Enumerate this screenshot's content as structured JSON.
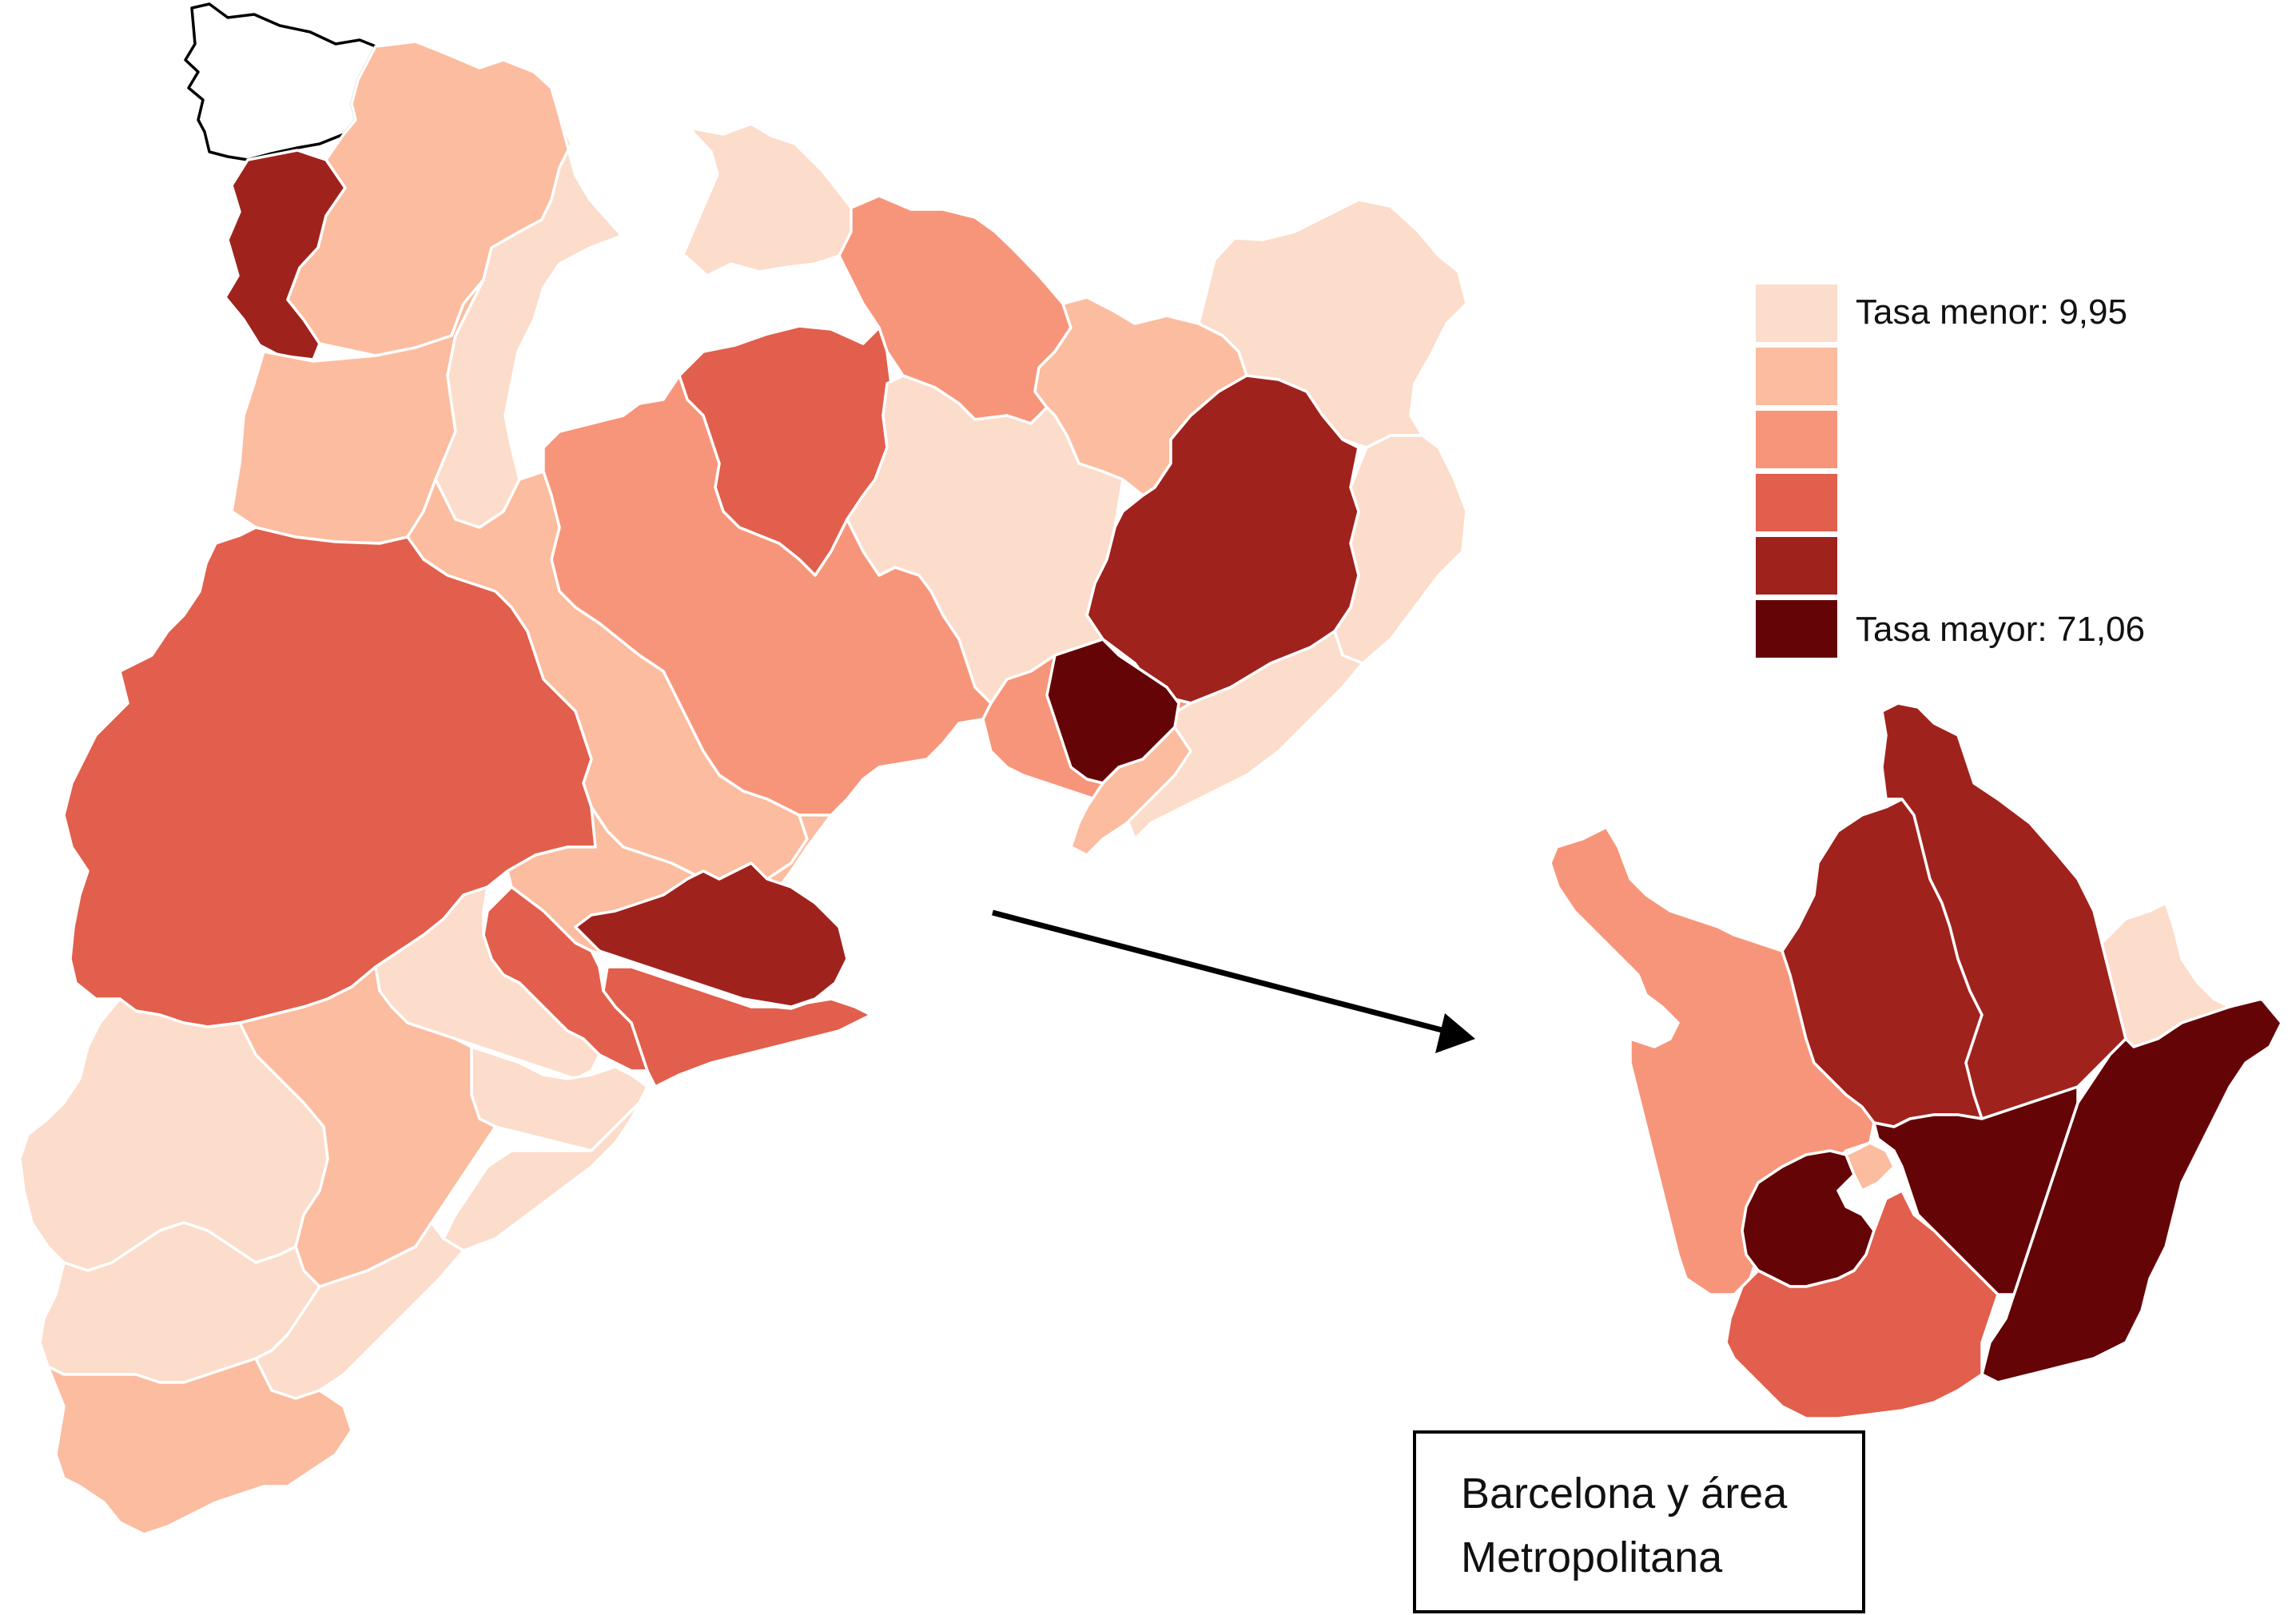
{
  "palette": {
    "c1": "#fcdcca",
    "c2": "#fbbc9f",
    "c3": "#f7957a",
    "c4": "#e15f4c",
    "c5": "#a0221d",
    "c6": "#650407",
    "border": "#ffffff",
    "arrow": "#000000"
  },
  "legend": {
    "min_label": "Tasa menor:  9,95",
    "max_label": "Tasa mayor: 71,06",
    "classes": [
      "c1",
      "c2",
      "c3",
      "c4",
      "c5",
      "c6"
    ]
  },
  "inset": {
    "line1": "Barcelona y área",
    "line2": "Metropolitana"
  },
  "regions": [
    {
      "name": "val-d-aran",
      "class": "none"
    },
    {
      "name": "alta-ribagorca",
      "class": "c5"
    },
    {
      "name": "pallars-sobira",
      "class": "c2"
    },
    {
      "name": "pallars-jussa",
      "class": "c2"
    },
    {
      "name": "alt-urgell",
      "class": "c1"
    },
    {
      "name": "cerdanya",
      "class": "c1"
    },
    {
      "name": "ripolles",
      "class": "c3"
    },
    {
      "name": "garrotxa",
      "class": "c2"
    },
    {
      "name": "alt-emporda",
      "class": "c1"
    },
    {
      "name": "baix-emporda",
      "class": "c1"
    },
    {
      "name": "girones",
      "class": "c5"
    },
    {
      "name": "selva",
      "class": "c1"
    },
    {
      "name": "bergueda",
      "class": "c4"
    },
    {
      "name": "osona",
      "class": "c1"
    },
    {
      "name": "solsones-bages",
      "class": "c3"
    },
    {
      "name": "noguera",
      "class": "c2"
    },
    {
      "name": "segria",
      "class": "c4"
    },
    {
      "name": "anoia",
      "class": "c2"
    },
    {
      "name": "vallesos",
      "class": "c3"
    },
    {
      "name": "maresme-nord",
      "class": "c6"
    },
    {
      "name": "maresme-sud",
      "class": "c2"
    },
    {
      "name": "vallesos-occidental",
      "class": "c5"
    },
    {
      "name": "baix-llobregat",
      "class": "c4"
    },
    {
      "name": "garraf",
      "class": "c4"
    },
    {
      "name": "conca-de-barbera",
      "class": "c1"
    },
    {
      "name": "alt-camp",
      "class": "c1"
    },
    {
      "name": "tarragones",
      "class": "c1"
    },
    {
      "name": "priorat",
      "class": "c2"
    },
    {
      "name": "ribera-d-ebre",
      "class": "c1"
    },
    {
      "name": "terra-alta",
      "class": "c1"
    },
    {
      "name": "baix-ebre",
      "class": "c1"
    },
    {
      "name": "montsia",
      "class": "c2"
    },
    {
      "name": "metro-west",
      "class": "c3"
    },
    {
      "name": "metro-north-a",
      "class": "c5"
    },
    {
      "name": "metro-north-b",
      "class": "c5"
    },
    {
      "name": "metro-northeast",
      "class": "c1"
    },
    {
      "name": "metro-coast",
      "class": "c6"
    },
    {
      "name": "metro-center",
      "class": "c6"
    },
    {
      "name": "metro-southwest",
      "class": "c6"
    },
    {
      "name": "metro-small",
      "class": "c2"
    },
    {
      "name": "metro-south",
      "class": "c4"
    }
  ]
}
